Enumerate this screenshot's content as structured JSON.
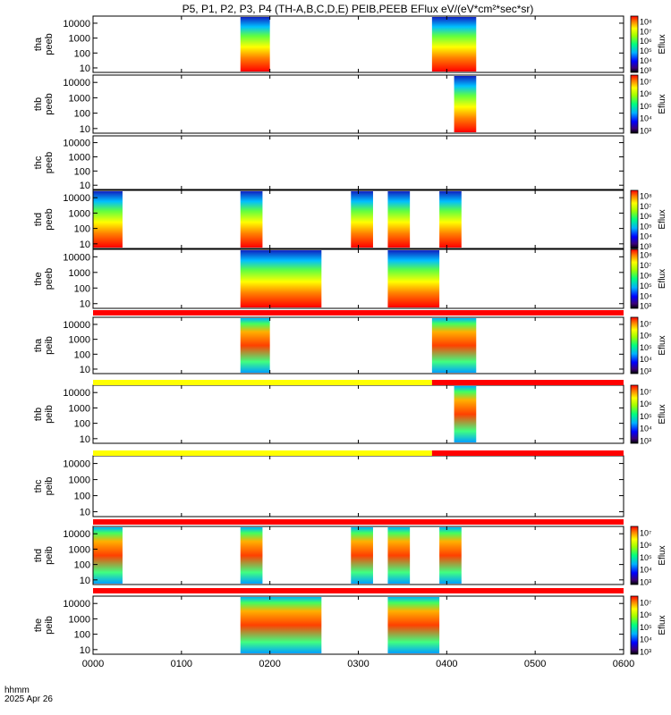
{
  "chart_data": {
    "type": "heatmap",
    "title": "P5, P1, P2, P3, P4 (TH-A,B,C,D,E) PEIB,PEEB EFlux eV/(eV*cm²*sec*sr)",
    "time_axis": {
      "label": "hhmm",
      "date": "2025 Apr 26",
      "ticks": [
        "0000",
        "0100",
        "0200",
        "0300",
        "0400",
        "0500",
        "0600"
      ],
      "range_hhmm": [
        "0000",
        "0600"
      ]
    },
    "y_scale": "log",
    "y_ticks": [
      "10",
      "100",
      "1000",
      "10000"
    ],
    "colorbar_label": "Eflux",
    "panels": [
      {
        "probe": "tha",
        "species": "peeb",
        "cbar_ticks": [
          "10³",
          "10⁴",
          "10⁵",
          "10⁶",
          "10⁷",
          "10⁸"
        ],
        "data_intervals_hhmm": [
          [
            "0140",
            "0200"
          ],
          [
            "0350",
            "0420"
          ]
        ]
      },
      {
        "probe": "thb",
        "species": "peeb",
        "cbar_ticks": [
          "10³",
          "10⁴",
          "10⁵",
          "10⁶",
          "10⁷"
        ],
        "data_intervals_hhmm": [
          [
            "0405",
            "0420"
          ]
        ]
      },
      {
        "probe": "thc",
        "species": "peeb",
        "cbar_ticks": [],
        "data_intervals_hhmm": []
      },
      {
        "probe": "thd",
        "species": "peeb",
        "cbar_ticks": [
          "10³",
          "10⁴",
          "10⁵",
          "10⁶",
          "10⁷",
          "10⁸"
        ],
        "data_intervals_hhmm": [
          [
            "0000",
            "0020"
          ],
          [
            "0140",
            "0155"
          ],
          [
            "0255",
            "0310"
          ],
          [
            "0320",
            "0335"
          ],
          [
            "0355",
            "0410"
          ]
        ]
      },
      {
        "probe": "the",
        "species": "peeb",
        "cbar_ticks": [
          "10³",
          "10⁴",
          "10⁵",
          "10⁶",
          "10⁷",
          "10⁸"
        ],
        "data_intervals_hhmm": [
          [
            "0140",
            "0235"
          ],
          [
            "0320",
            "0355"
          ]
        ]
      },
      {
        "probe": "tha",
        "species": "peib",
        "cbar_ticks": [
          "10³",
          "10⁴",
          "10⁵",
          "10⁶",
          "10⁷"
        ],
        "data_intervals_hhmm": [
          [
            "0140",
            "0200"
          ],
          [
            "0350",
            "0420"
          ]
        ]
      },
      {
        "probe": "thb",
        "species": "peib",
        "cbar_ticks": [
          "10³",
          "10⁴",
          "10⁵",
          "10⁶",
          "10⁷"
        ],
        "data_intervals_hhmm": [
          [
            "0405",
            "0420"
          ]
        ]
      },
      {
        "probe": "thc",
        "species": "peib",
        "cbar_ticks": [],
        "data_intervals_hhmm": []
      },
      {
        "probe": "thd",
        "species": "peib",
        "cbar_ticks": [
          "10³",
          "10⁴",
          "10⁵",
          "10⁶",
          "10⁷"
        ],
        "data_intervals_hhmm": [
          [
            "0000",
            "0020"
          ],
          [
            "0140",
            "0155"
          ],
          [
            "0255",
            "0310"
          ],
          [
            "0320",
            "0335"
          ],
          [
            "0355",
            "0410"
          ]
        ]
      },
      {
        "probe": "the",
        "species": "peib",
        "cbar_ticks": [
          "10³",
          "10⁴",
          "10⁵",
          "10⁶",
          "10⁷"
        ],
        "data_intervals_hhmm": [
          [
            "0140",
            "0235"
          ],
          [
            "0320",
            "0355"
          ]
        ]
      }
    ],
    "status_bars": [
      {
        "segments": [
          {
            "color": "#ff0000",
            "from": "0000",
            "to": "0600"
          }
        ]
      },
      {
        "segments": [
          {
            "color": "#ffff00",
            "from": "0000",
            "to": "0350"
          },
          {
            "color": "#ff0000",
            "from": "0350",
            "to": "0600"
          }
        ]
      },
      {
        "segments": [
          {
            "color": "#ffff00",
            "from": "0000",
            "to": "0350"
          },
          {
            "color": "#ff0000",
            "from": "0350",
            "to": "0600"
          }
        ]
      },
      {
        "segments": [
          {
            "color": "#ff0000",
            "from": "0000",
            "to": "0600"
          }
        ]
      },
      {
        "segments": [
          {
            "color": "#ff0000",
            "from": "0000",
            "to": "0600"
          }
        ]
      }
    ]
  }
}
